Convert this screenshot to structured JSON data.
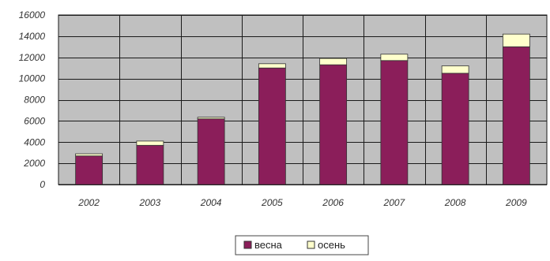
{
  "chart_data": {
    "type": "bar",
    "stacked": true,
    "title": "",
    "xlabel": "",
    "ylabel": "",
    "categories": [
      "2002",
      "2003",
      "2004",
      "2005",
      "2006",
      "2007",
      "2008",
      "2009"
    ],
    "series": [
      {
        "name": "весна",
        "values": [
          2700,
          3700,
          6200,
          11000,
          11300,
          11700,
          10500,
          13000
        ]
      },
      {
        "name": "осень",
        "values": [
          200,
          400,
          150,
          400,
          600,
          600,
          700,
          1200
        ]
      }
    ],
    "ylim": [
      0,
      16000
    ],
    "yticks": [
      0,
      2000,
      4000,
      6000,
      8000,
      10000,
      12000,
      14000,
      16000
    ],
    "grid": true,
    "legend": "bottom-center",
    "colors": {
      "plot_background": "#c0c0c0",
      "grid": "#1a1a1a",
      "series": [
        "#8b1e5a",
        "#ffffcc"
      ],
      "bar_stroke": "#333333"
    }
  }
}
